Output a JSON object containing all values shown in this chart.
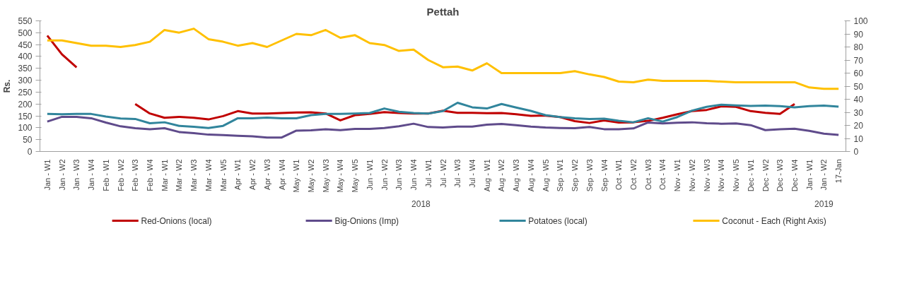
{
  "chart_data": {
    "type": "line",
    "title": "Pettah",
    "ylabel": "Rs.",
    "categories": [
      "Jan - W1",
      "Jan - W2",
      "Jan - W3",
      "Jan - W4",
      "Feb - W1",
      "Feb - W2",
      "Feb - W3",
      "Feb - W4",
      "Mar - W1",
      "Mar - W2",
      "Mar - W3",
      "Mar - W4",
      "Mar - W5",
      "Apr - W1",
      "Apr - W2",
      "Apr - W3",
      "Apr - W4",
      "May - W1",
      "May - W2",
      "May - W3",
      "May - W4",
      "May - W5",
      "Jun - W1",
      "Jun - W2",
      "Jun - W3",
      "Jun - W4",
      "Jul - W1",
      "Jul - W2",
      "Jul - W3",
      "Jul - W4",
      "Aug - W1",
      "Aug - W2",
      "Aug - W3",
      "Aug - W4",
      "Aug - W5",
      "Sep - W1",
      "Sep - W2",
      "Sep - W3",
      "Sep - W4",
      "Oct - W1",
      "Oct - W2",
      "Oct - W3",
      "Oct - W4",
      "Nov - W1",
      "Nov - W2",
      "Nov - W3",
      "Nov - W4",
      "Nov - W5",
      "Dec - W1",
      "Dec - W2",
      "Dec - W3",
      "Dec - W4",
      "Jan - W1",
      "Jan - W2",
      "17-Jan"
    ],
    "series": [
      {
        "name": "Red-Onions (local)",
        "color": "#c00000",
        "values": [
          488,
          409,
          354,
          null,
          null,
          null,
          200,
          160,
          142,
          146,
          142,
          135,
          149,
          170,
          160,
          160,
          162,
          164,
          165,
          160,
          131,
          153,
          158,
          166,
          162,
          160,
          160,
          172,
          163,
          163,
          161,
          162,
          157,
          150,
          151,
          145,
          128,
          120,
          131,
          122,
          123,
          129,
          142,
          157,
          170,
          175,
          190,
          188,
          170,
          163,
          158,
          200,
          null,
          null,
          null
        ]
      },
      {
        "name": "Big-Onions (Imp)",
        "color": "#5f4b8b",
        "values": [
          126,
          146,
          146,
          140,
          122,
          106,
          98,
          94,
          98,
          82,
          77,
          71,
          69,
          66,
          64,
          59,
          59,
          88,
          89,
          94,
          90,
          95,
          95,
          99,
          106,
          117,
          103,
          101,
          105,
          105,
          113,
          116,
          111,
          105,
          101,
          99,
          98,
          103,
          94,
          94,
          97,
          122,
          118,
          121,
          123,
          119,
          117,
          118,
          111,
          90,
          94,
          96,
          87,
          75,
          70
        ]
      },
      {
        "name": "Potatoes (local)",
        "color": "#31859c",
        "values": [
          158,
          157,
          158,
          158,
          147,
          139,
          137,
          119,
          123,
          108,
          104,
          99,
          108,
          140,
          140,
          143,
          140,
          140,
          153,
          158,
          158,
          160,
          162,
          181,
          167,
          162,
          160,
          170,
          205,
          186,
          181,
          200,
          185,
          171,
          153,
          145,
          140,
          137,
          138,
          129,
          123,
          140,
          126,
          145,
          172,
          188,
          197,
          194,
          192,
          193,
          191,
          186,
          191,
          193,
          189
        ]
      },
      {
        "name": "Coconut - Each (Right Axis)",
        "color": "#ffc000",
        "axis": "y2",
        "values": [
          85,
          85,
          83,
          81,
          81,
          80,
          81.5,
          84,
          93,
          91,
          94,
          86,
          84,
          81,
          83,
          80,
          85,
          90,
          89,
          93,
          87,
          89,
          83,
          81.5,
          77,
          78,
          70,
          64.5,
          65,
          62,
          67.5,
          60,
          60,
          60,
          60,
          60,
          61.5,
          59,
          57,
          53.5,
          53,
          55,
          54,
          54,
          54,
          54,
          53.5,
          53,
          53,
          53,
          53,
          53,
          49,
          48,
          48
        ]
      }
    ],
    "ylim": [
      0,
      550
    ],
    "yticks": [
      0,
      50,
      100,
      150,
      200,
      250,
      300,
      350,
      400,
      450,
      500,
      550
    ],
    "y2lim": [
      0,
      100
    ],
    "y2ticks": [
      0,
      10,
      20,
      30,
      40,
      50,
      60,
      70,
      80,
      90,
      100
    ],
    "annotations": [
      "2018",
      "2019"
    ],
    "legend": "bottom"
  }
}
